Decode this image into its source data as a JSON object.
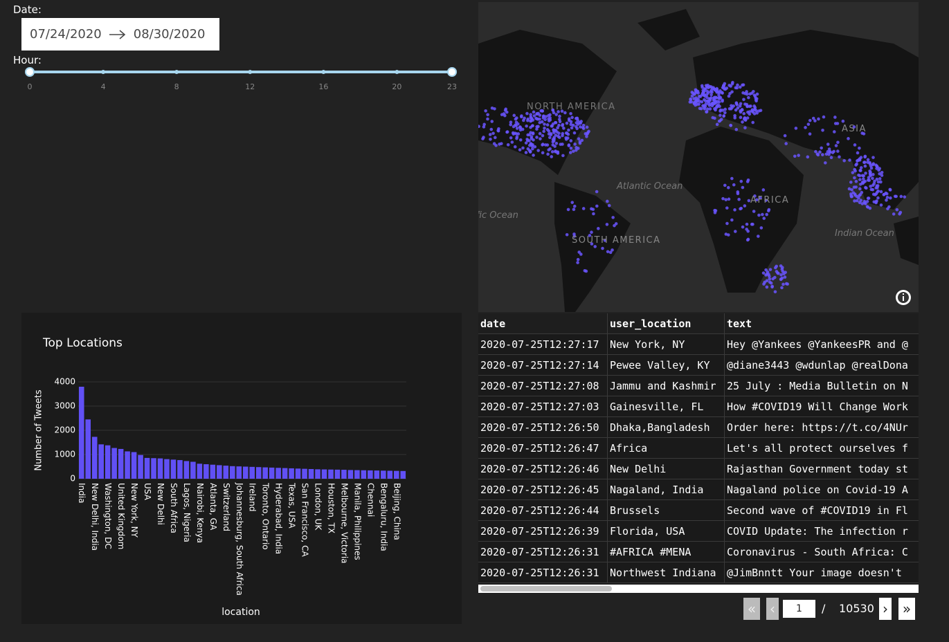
{
  "date_picker": {
    "label": "Date:",
    "start": "07/24/2020",
    "end": "08/30/2020"
  },
  "hour_slider": {
    "label": "Hour:",
    "min": 0,
    "max": 23,
    "marks": [
      0,
      4,
      8,
      12,
      16,
      20,
      23
    ]
  },
  "map": {
    "labels": [
      "NORTH AMERICA",
      "Atlantic Ocean",
      "AFRICA",
      "ASIA",
      "SOUTH AMERICA",
      "Indian Ocean",
      "Pacific Ocean"
    ]
  },
  "chart_data": {
    "type": "bar",
    "title": "Top Locations",
    "x_label": "location",
    "y_label": "Number of Tweets",
    "color": "#6150f5",
    "grid": true,
    "categories": [
      "India",
      null,
      "New Delhi, India",
      null,
      "Washington, DC",
      null,
      "United Kingdom",
      null,
      "New York, NY",
      null,
      "USA",
      null,
      "New Delhi",
      null,
      "South Africa",
      null,
      "Lagos, Nigeria",
      null,
      "Nairobi, Kenya",
      null,
      "Atlanta, GA",
      null,
      "Switzerland",
      null,
      "Johannesburg, South Africa",
      null,
      "Ireland",
      null,
      "Toronto, Ontario",
      null,
      "Hyderabad, India",
      null,
      "Texas, USA",
      null,
      "San Francisco, CA",
      null,
      "London, UK",
      null,
      "Houston, TX",
      null,
      "Melbourne, Victoria",
      null,
      "Manila, Philippines",
      null,
      "Chennai",
      null,
      "Bengaluru, India",
      null,
      "Beijing, China",
      null
    ],
    "values": [
      3800,
      2450,
      1730,
      1420,
      1380,
      1270,
      1230,
      1130,
      1100,
      980,
      860,
      850,
      840,
      810,
      790,
      770,
      730,
      700,
      620,
      600,
      580,
      560,
      540,
      520,
      510,
      500,
      490,
      480,
      470,
      460,
      450,
      440,
      430,
      420,
      410,
      400,
      390,
      385,
      380,
      375,
      370,
      360,
      355,
      350,
      345,
      340,
      335,
      330,
      325,
      320
    ],
    "ylim": [
      0,
      4000
    ],
    "yticks": [
      0,
      1000,
      2000,
      3000,
      4000
    ]
  },
  "table": {
    "columns": [
      "date",
      "user_location",
      "text"
    ],
    "rows": [
      [
        "2020-07-25T12:27:17",
        "New York, NY",
        "Hey @Yankees @YankeesPR and @"
      ],
      [
        "2020-07-25T12:27:14",
        "Pewee Valley, KY",
        "@diane3443 @wdunlap @realDona"
      ],
      [
        "2020-07-25T12:27:08",
        "Jammu and Kashmir",
        "25 July : Media Bulletin on N"
      ],
      [
        "2020-07-25T12:27:03",
        "Gainesville, FL",
        "How #COVID19 Will Change Work"
      ],
      [
        "2020-07-25T12:26:50",
        "Dhaka,Bangladesh",
        "Order here: https://t.co/4NUr"
      ],
      [
        "2020-07-25T12:26:47",
        "Africa",
        "Let's all protect ourselves f"
      ],
      [
        "2020-07-25T12:26:46",
        "New Delhi",
        "Rajasthan Government today st"
      ],
      [
        "2020-07-25T12:26:45",
        "Nagaland, India",
        "Nagaland police on Covid-19 A"
      ],
      [
        "2020-07-25T12:26:44",
        "Brussels",
        "Second wave of #COVID19 in Fl"
      ],
      [
        "2020-07-25T12:26:39",
        "Florida, USA",
        "COVID Update: The infection r"
      ],
      [
        "2020-07-25T12:26:31",
        "#AFRICA #MENA",
        "Coronavirus - South Africa: C"
      ],
      [
        "2020-07-25T12:26:31",
        "Northwest Indiana",
        "@JimBnntt Your image doesn't "
      ]
    ]
  },
  "pagination": {
    "current": "1",
    "separator": "/",
    "total": "10530"
  }
}
